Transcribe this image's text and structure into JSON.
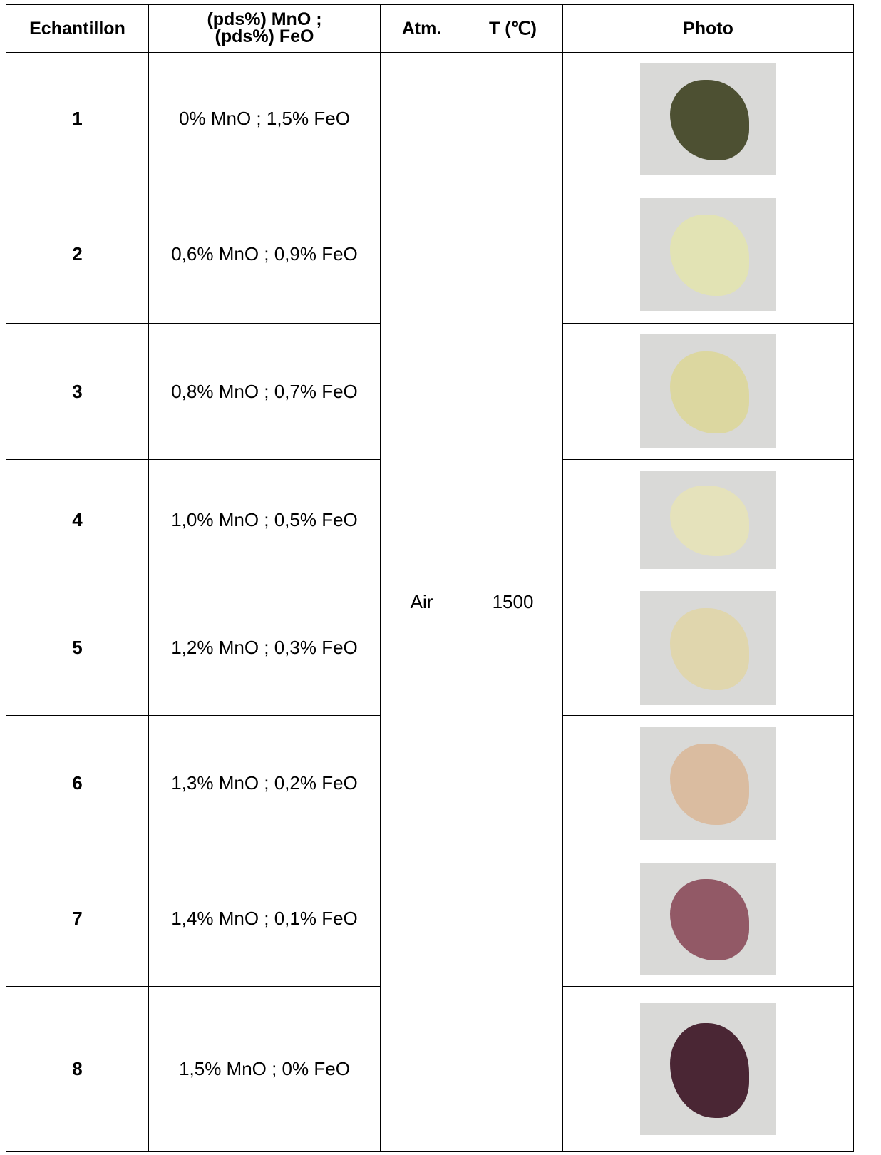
{
  "table": {
    "header": [
      "Echantillon",
      "(pds%) MnO ; (pds%) FeO",
      "Atm.",
      "T (℃)",
      "Photo"
    ],
    "rows": [
      [
        "1",
        "0% MnO ; 1,5% FeO"
      ],
      [
        "2",
        "0,6% MnO ; 0,9% FeO"
      ],
      [
        "3",
        "0,8% MnO ; 0,7% FeO"
      ],
      [
        "4",
        "1,0% MnO ; 0,5% FeO"
      ],
      [
        "5",
        "1,2% MnO ; 0,3% FeO"
      ],
      [
        "6",
        "1,3% MnO ; 0,2% FeO"
      ],
      [
        "7",
        "1,4% MnO ; 0,1% FeO"
      ],
      [
        "8",
        "1,5% MnO ; 0% FeO"
      ]
    ],
    "atmosphere": "Air",
    "temperature": "1500"
  }
}
